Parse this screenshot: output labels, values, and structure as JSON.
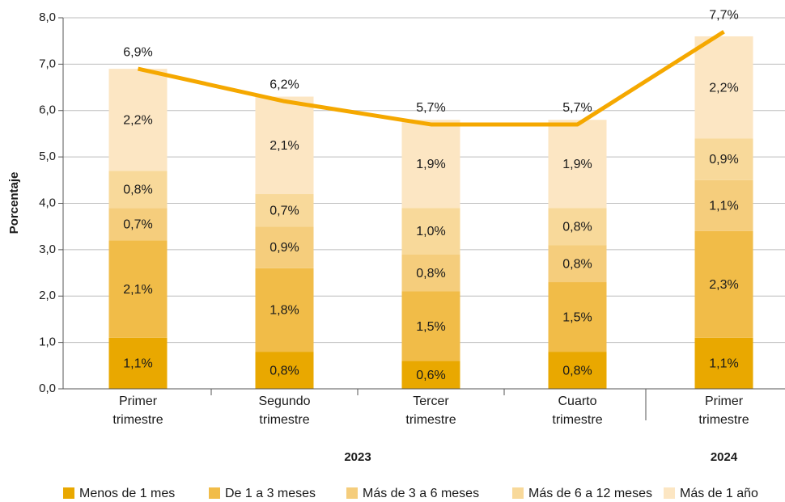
{
  "chart_data": {
    "type": "stacked-bar-line",
    "y_label": "Porcentaje",
    "categories": [
      [
        "Primer",
        "trimestre"
      ],
      [
        "Segundo",
        "trimestre"
      ],
      [
        "Tercer",
        "trimestre"
      ],
      [
        "Cuarto",
        "trimestre"
      ],
      [
        "Primer",
        "trimestre"
      ]
    ],
    "groups": [
      {
        "label": "2023",
        "count": 4
      },
      {
        "label": "2024",
        "count": 1
      }
    ],
    "series": [
      {
        "name": "Menos de 1 mes",
        "color": "#e9a800",
        "values": [
          1.1,
          0.8,
          0.6,
          0.8,
          1.1
        ],
        "value_labels": [
          "1,1%",
          "0,8%",
          "0,6%",
          "0,8%",
          "1,1%"
        ]
      },
      {
        "name": "De 1 a 3 meses",
        "color": "#f1bc48",
        "values": [
          2.1,
          1.8,
          1.5,
          1.5,
          2.3
        ],
        "value_labels": [
          "2,1%",
          "1,8%",
          "1,5%",
          "1,5%",
          "2,3%"
        ]
      },
      {
        "name": "Más de 3 a 6 meses",
        "color": "#f5cd7c",
        "values": [
          0.7,
          0.9,
          0.8,
          0.8,
          1.1
        ],
        "value_labels": [
          "0,7%",
          "0,9%",
          "0,8%",
          "0,8%",
          "1,1%"
        ]
      },
      {
        "name": "Más de 6 a 12 meses",
        "color": "#f8d99a",
        "values": [
          0.8,
          0.7,
          1.0,
          0.8,
          0.9
        ],
        "value_labels": [
          "0,8%",
          "0,7%",
          "1,0%",
          "0,8%",
          "0,9%"
        ]
      },
      {
        "name": "Más de 1 año",
        "color": "#fce6c3",
        "values": [
          2.2,
          2.1,
          1.9,
          1.9,
          2.2
        ],
        "value_labels": [
          "2,2%",
          "2,1%",
          "1,9%",
          "1,9%",
          "2,2%"
        ]
      }
    ],
    "line": {
      "color": "#f5a800",
      "values": [
        6.9,
        6.2,
        5.7,
        5.7,
        7.7
      ],
      "value_labels": [
        "6,9%",
        "6,2%",
        "5,7%",
        "5,7%",
        "7,7%"
      ]
    },
    "ylim": [
      0,
      8
    ],
    "yticks": [
      {
        "value": 0,
        "label": "0,0"
      },
      {
        "value": 1,
        "label": "1,0"
      },
      {
        "value": 2,
        "label": "2,0"
      },
      {
        "value": 3,
        "label": "3,0"
      },
      {
        "value": 4,
        "label": "4,0"
      },
      {
        "value": 5,
        "label": "5,0"
      },
      {
        "value": 6,
        "label": "6,0"
      },
      {
        "value": 7,
        "label": "7,0"
      },
      {
        "value": 8,
        "label": "8,0"
      }
    ],
    "grid": true,
    "legend": "bottom"
  }
}
